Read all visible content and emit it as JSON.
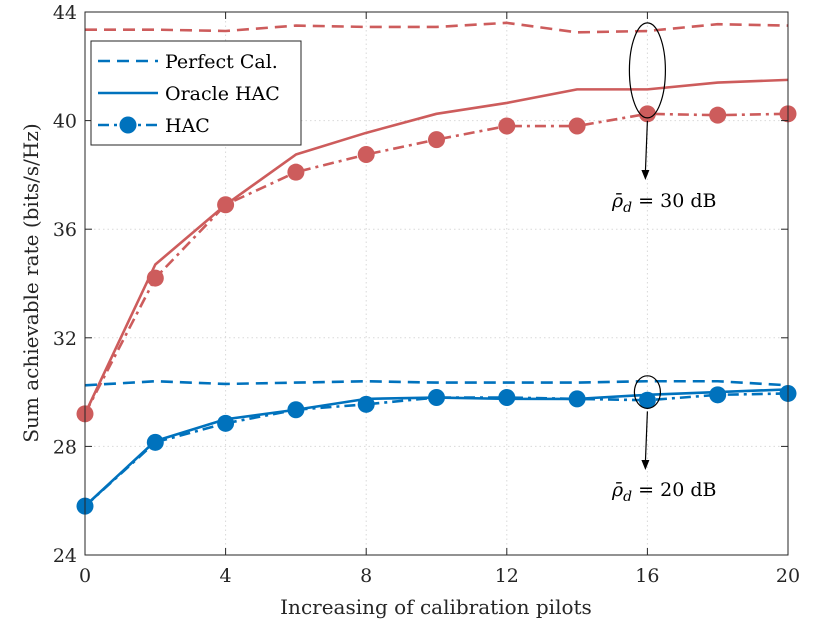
{
  "chart_data": {
    "type": "line",
    "title": "",
    "xlabel": "Increasing of calibration pilots",
    "ylabel": "Sum achievable rate (bits/s/Hz)",
    "xlim": [
      0,
      20
    ],
    "ylim": [
      24,
      44
    ],
    "xticks": [
      0,
      4,
      8,
      12,
      16,
      20
    ],
    "yticks": [
      24,
      28,
      32,
      36,
      40,
      44
    ],
    "grid": true,
    "legend": {
      "position": "top-left",
      "entries": [
        {
          "label": "Perfect Cal.",
          "style": "dashed"
        },
        {
          "label": "Oracle HAC",
          "style": "solid"
        },
        {
          "label": "HAC",
          "style": "dashdot-marker"
        }
      ]
    },
    "colors": {
      "red": "#cd5c5c",
      "blue": "#0072bd"
    },
    "x": [
      0,
      2,
      4,
      6,
      8,
      10,
      12,
      14,
      16,
      18,
      20
    ],
    "series": [
      {
        "name": "Perfect Cal. (30 dB)",
        "group": "30 dB",
        "style": "dashed",
        "color": "#cd5c5c",
        "values": [
          43.35,
          43.35,
          43.3,
          43.5,
          43.45,
          43.45,
          43.6,
          43.25,
          43.3,
          43.55,
          43.5
        ]
      },
      {
        "name": "Oracle HAC (30 dB)",
        "group": "30 dB",
        "style": "solid",
        "color": "#cd5c5c",
        "values": [
          29.2,
          34.7,
          36.9,
          38.75,
          39.55,
          40.25,
          40.65,
          41.15,
          41.15,
          41.4,
          41.5
        ]
      },
      {
        "name": "HAC (30 dB)",
        "group": "30 dB",
        "style": "dashdot-marker",
        "color": "#cd5c5c",
        "values": [
          29.2,
          34.2,
          36.9,
          38.1,
          38.75,
          39.3,
          39.8,
          39.8,
          40.25,
          40.2,
          40.25
        ]
      },
      {
        "name": "Perfect Cal. (20 dB)",
        "group": "20 dB",
        "style": "dashed",
        "color": "#0072bd",
        "values": [
          30.25,
          30.4,
          30.3,
          30.35,
          30.4,
          30.35,
          30.35,
          30.35,
          30.4,
          30.4,
          30.25
        ]
      },
      {
        "name": "Oracle HAC (20 dB)",
        "group": "20 dB",
        "style": "solid",
        "color": "#0072bd",
        "values": [
          25.8,
          28.2,
          29.0,
          29.35,
          29.75,
          29.8,
          29.75,
          29.75,
          29.9,
          30.0,
          30.1
        ]
      },
      {
        "name": "HAC (20 dB)",
        "group": "20 dB",
        "style": "dashdot-marker",
        "color": "#0072bd",
        "values": [
          25.8,
          28.15,
          28.85,
          29.35,
          29.55,
          29.8,
          29.8,
          29.75,
          29.7,
          29.9,
          29.95
        ]
      }
    ],
    "annotations": [
      {
        "text_symbol": "ρ̄",
        "text_sub": "d",
        "text_value": "= 30 dB",
        "group": "30 dB",
        "ellipse_at_x": 16,
        "ellipse_y_range": [
          40.1,
          43.6
        ]
      },
      {
        "text_symbol": "ρ̄",
        "text_sub": "d",
        "text_value": "= 20 dB",
        "group": "20 dB",
        "ellipse_at_x": 16,
        "ellipse_y_range": [
          29.4,
          30.6
        ]
      }
    ]
  }
}
